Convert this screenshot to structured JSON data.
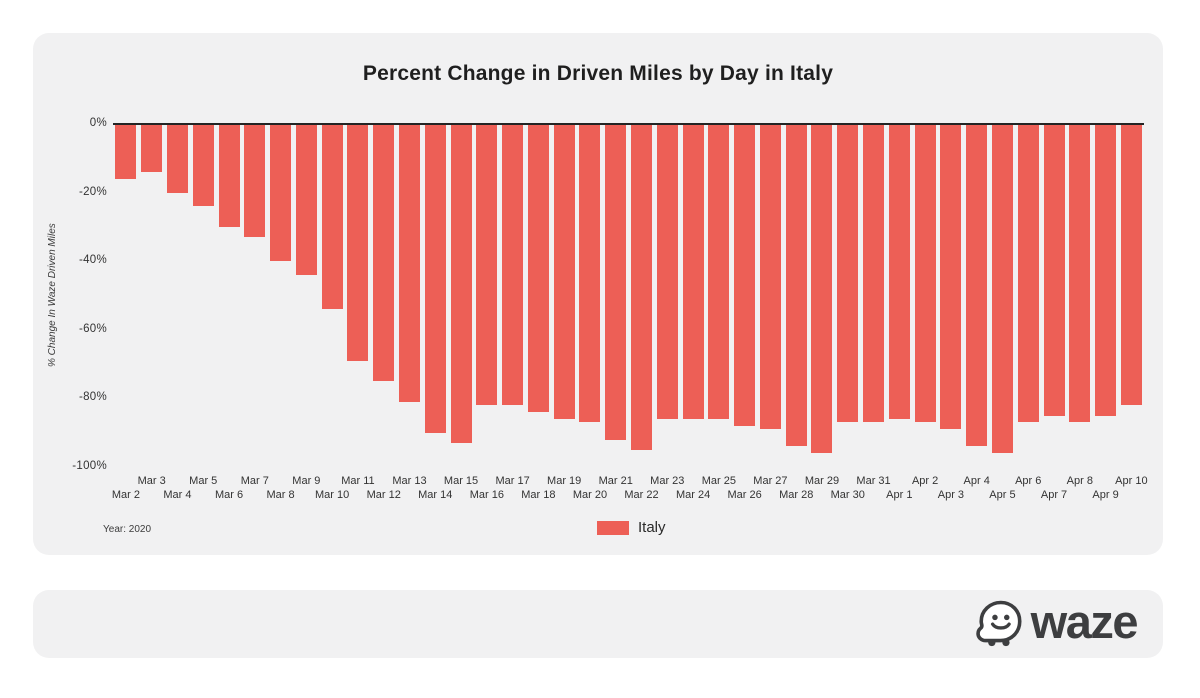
{
  "chart_data": {
    "type": "bar",
    "title": "Percent Change in Driven Miles by Day in Italy",
    "ylabel": "% Change In Waze Driven Miles",
    "note": "Year: 2020",
    "bar_color": "#ED5F56",
    "ylim": [
      -100,
      0
    ],
    "yticks": [
      "0%",
      "-20%",
      "-40%",
      "-60%",
      "-80%",
      "-100%"
    ],
    "legend": [
      {
        "label": "Italy",
        "color": "#ED5F56"
      }
    ],
    "legend_position": "bottom-center",
    "grid": false,
    "categories": [
      "Mar 2",
      "Mar 3",
      "Mar 4",
      "Mar 5",
      "Mar 6",
      "Mar 7",
      "Mar 8",
      "Mar 9",
      "Mar 10",
      "Mar 11",
      "Mar 12",
      "Mar 13",
      "Mar 14",
      "Mar 15",
      "Mar 16",
      "Mar 17",
      "Mar 18",
      "Mar 19",
      "Mar 20",
      "Mar 21",
      "Mar 22",
      "Mar 23",
      "Mar 24",
      "Mar 25",
      "Mar 26",
      "Mar 27",
      "Mar 28",
      "Mar 29",
      "Mar 30",
      "Mar 31",
      "Apr 1",
      "Apr 2",
      "Apr 3",
      "Apr 4",
      "Apr 5",
      "Apr 6",
      "Apr 7",
      "Apr 8",
      "Apr 9",
      "Apr 10"
    ],
    "values": [
      -16,
      -14,
      -20,
      -24,
      -30,
      -33,
      -40,
      -44,
      -54,
      -69,
      -75,
      -81,
      -90,
      -93,
      -82,
      -82,
      -84,
      -86,
      -87,
      -92,
      -95,
      -86,
      -86,
      -86,
      -88,
      -89,
      -94,
      -96,
      -87,
      -87,
      -86,
      -87,
      -89,
      -94,
      -96,
      -87,
      -85,
      -87,
      -85,
      -82
    ]
  },
  "footer": {
    "logo_text": "waze"
  },
  "colors": {
    "card_background": "#f1f1f2",
    "page_background": "#ffffff",
    "axis_line": "#242424",
    "logo": "#3d3e40"
  }
}
